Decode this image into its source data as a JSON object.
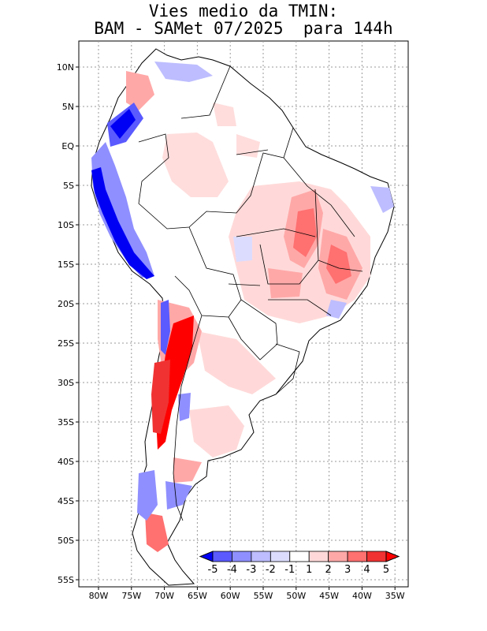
{
  "title": {
    "line1": "Vies medio da TMIN:",
    "line2": "BAM - SAMet 07/2025  para 144h"
  },
  "axes": {
    "lat_labels": [
      "10N",
      "5N",
      "EQ",
      "5S",
      "10S",
      "15S",
      "20S",
      "25S",
      "30S",
      "35S",
      "40S",
      "45S",
      "50S",
      "55S"
    ],
    "lon_labels": [
      "80W",
      "75W",
      "70W",
      "65W",
      "60W",
      "55W",
      "50W",
      "45W",
      "40W",
      "35W"
    ]
  },
  "colorbar": {
    "labels": [
      "-5",
      "-4",
      "-3",
      "-2",
      "-1",
      "1",
      "2",
      "3",
      "4",
      "5"
    ],
    "colors": [
      "#0000f5",
      "#5a5aff",
      "#8f8fff",
      "#bdbdff",
      "#dcdcff",
      "#ffffff",
      "#ffd9d9",
      "#ffa8a8",
      "#ff7070",
      "#f03232",
      "#ff0000"
    ]
  },
  "map": {
    "lon_min": -83,
    "lon_max": -35,
    "lat_min": -56,
    "lat_max": 13,
    "land_color": "#ffffff",
    "border_color": "#000000"
  }
}
